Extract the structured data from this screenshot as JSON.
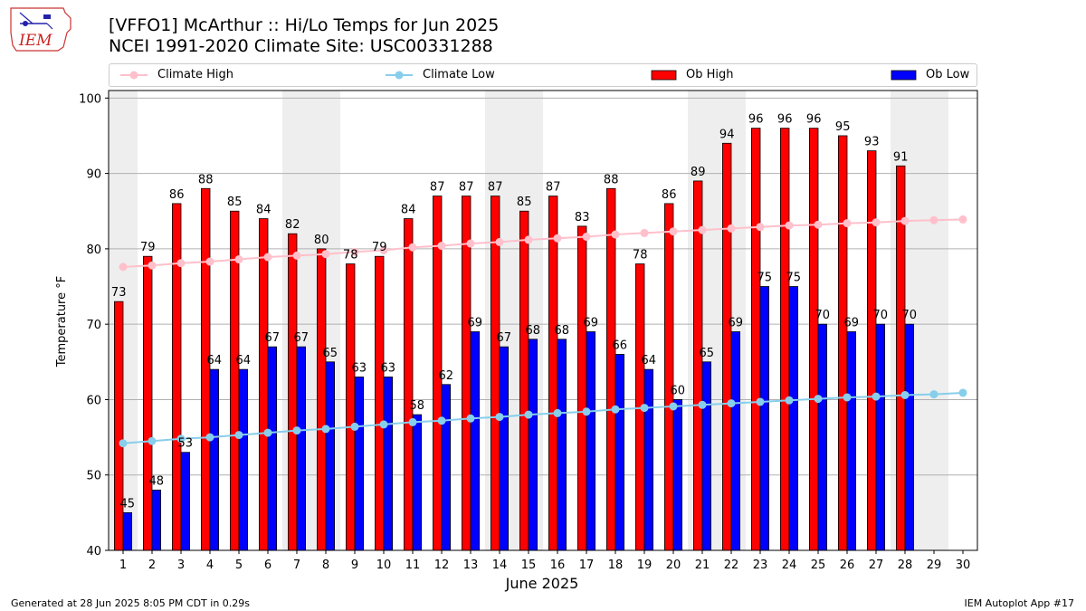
{
  "header": {
    "title_line1": "[VFFO1] McArthur :: Hi/Lo Temps for Jun 2025",
    "title_line2": "NCEI 1991-2020 Climate Site: USC00331288",
    "logo_text": "IEM"
  },
  "legend": {
    "items": [
      {
        "label": "Climate High",
        "kind": "line",
        "color": "#ffc0cb"
      },
      {
        "label": "Climate Low",
        "kind": "line",
        "color": "#87ceeb"
      },
      {
        "label": "Ob High",
        "kind": "bar",
        "color": "#ff0000"
      },
      {
        "label": "Ob Low",
        "kind": "bar",
        "color": "#0000ff"
      }
    ]
  },
  "footer": {
    "left": "Generated at 28 Jun 2025 8:05 PM CDT in 0.29s",
    "right": "IEM Autoplot App #17"
  },
  "chart_data": {
    "type": "bar",
    "xlabel": "June 2025",
    "ylabel": "Temperature °F",
    "ylim": [
      40,
      101
    ],
    "yticks": [
      40,
      50,
      60,
      70,
      80,
      90,
      100
    ],
    "categories": [
      "1",
      "2",
      "3",
      "4",
      "5",
      "6",
      "7",
      "8",
      "9",
      "10",
      "11",
      "12",
      "13",
      "14",
      "15",
      "16",
      "17",
      "18",
      "19",
      "20",
      "21",
      "22",
      "23",
      "24",
      "25",
      "26",
      "27",
      "28",
      "29",
      "30"
    ],
    "weekend_days": [
      1,
      7,
      8,
      14,
      15,
      21,
      22,
      28,
      29
    ],
    "grid": "horizontal",
    "series": [
      {
        "name": "Ob High",
        "type": "bar",
        "color": "#ff0000",
        "values": [
          73,
          79,
          86,
          88,
          85,
          84,
          82,
          80,
          78,
          79,
          84,
          87,
          87,
          87,
          85,
          87,
          83,
          88,
          78,
          86,
          89,
          94,
          96,
          96,
          96,
          95,
          93,
          91,
          null,
          null
        ]
      },
      {
        "name": "Ob Low",
        "type": "bar",
        "color": "#0000ff",
        "values": [
          45,
          48,
          53,
          64,
          64,
          67,
          67,
          65,
          63,
          63,
          58,
          62,
          69,
          67,
          68,
          68,
          69,
          66,
          64,
          60,
          65,
          69,
          75,
          75,
          70,
          69,
          70,
          70,
          null,
          null
        ]
      },
      {
        "name": "Climate High",
        "type": "line",
        "color": "#ffc0cb",
        "values": [
          77.6,
          77.8,
          78.1,
          78.3,
          78.6,
          78.9,
          79.1,
          79.3,
          79.6,
          79.8,
          80.2,
          80.4,
          80.7,
          80.9,
          81.2,
          81.4,
          81.6,
          81.9,
          82.1,
          82.3,
          82.5,
          82.7,
          82.9,
          83.1,
          83.2,
          83.4,
          83.5,
          83.7,
          83.8,
          83.9
        ]
      },
      {
        "name": "Climate Low",
        "type": "line",
        "color": "#87ceeb",
        "values": [
          54.2,
          54.5,
          54.8,
          55.0,
          55.3,
          55.6,
          55.9,
          56.1,
          56.4,
          56.7,
          57.0,
          57.2,
          57.5,
          57.7,
          58.0,
          58.2,
          58.4,
          58.7,
          58.9,
          59.1,
          59.3,
          59.5,
          59.7,
          59.9,
          60.1,
          60.3,
          60.4,
          60.6,
          60.7,
          60.9
        ]
      }
    ]
  }
}
